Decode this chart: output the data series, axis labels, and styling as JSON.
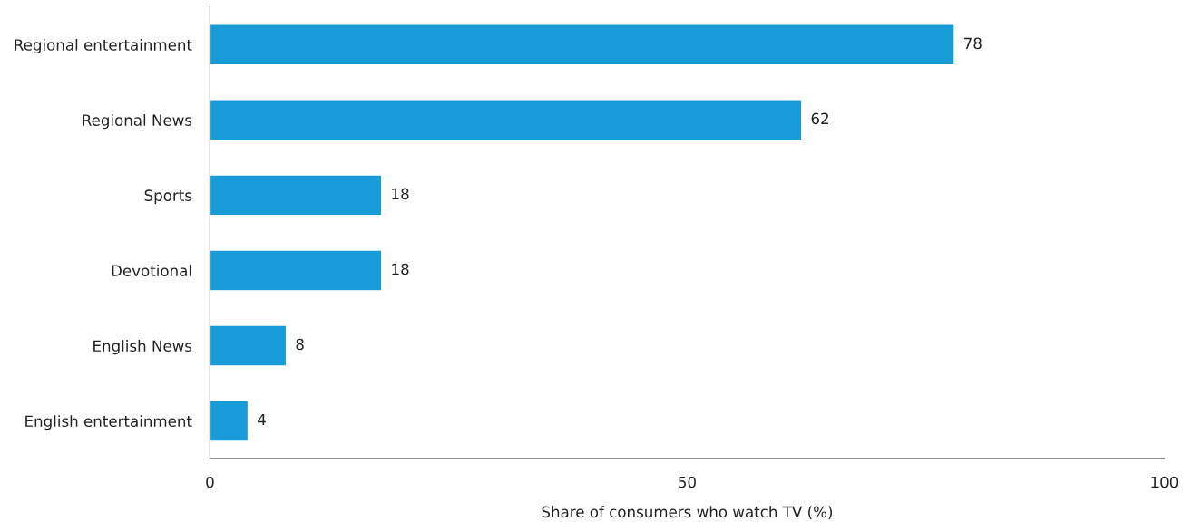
{
  "chart_data": {
    "type": "bar",
    "orientation": "horizontal",
    "xlabel": "Share of consumers who watch TV (%)",
    "categories": [
      "Regional entertainment",
      "Regional News",
      "Sports",
      "Devotional",
      "English News",
      "English entertainment"
    ],
    "values": [
      78,
      62,
      18,
      18,
      8,
      4
    ],
    "color": "#199bd8",
    "xlim": [
      0,
      100
    ],
    "xticks": [
      0,
      50,
      100
    ],
    "grid": false,
    "legend": false,
    "data_labels": true
  }
}
